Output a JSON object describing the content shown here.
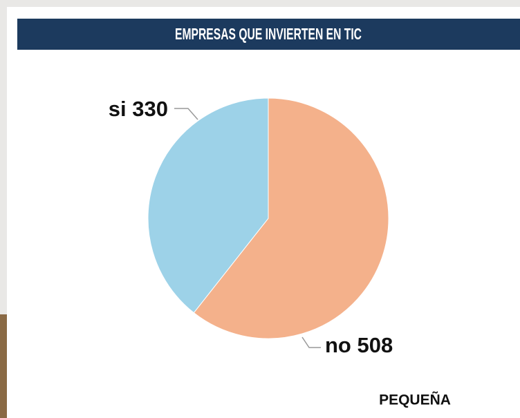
{
  "chart_data": {
    "type": "pie",
    "title": "EMPRESAS QUE INVIERTEN EN TIC",
    "categories": [
      "no",
      "si"
    ],
    "values": [
      508,
      330
    ],
    "colors": [
      "#f4b18b",
      "#9dd2e8"
    ],
    "caption": "PEQUEÑA"
  }
}
